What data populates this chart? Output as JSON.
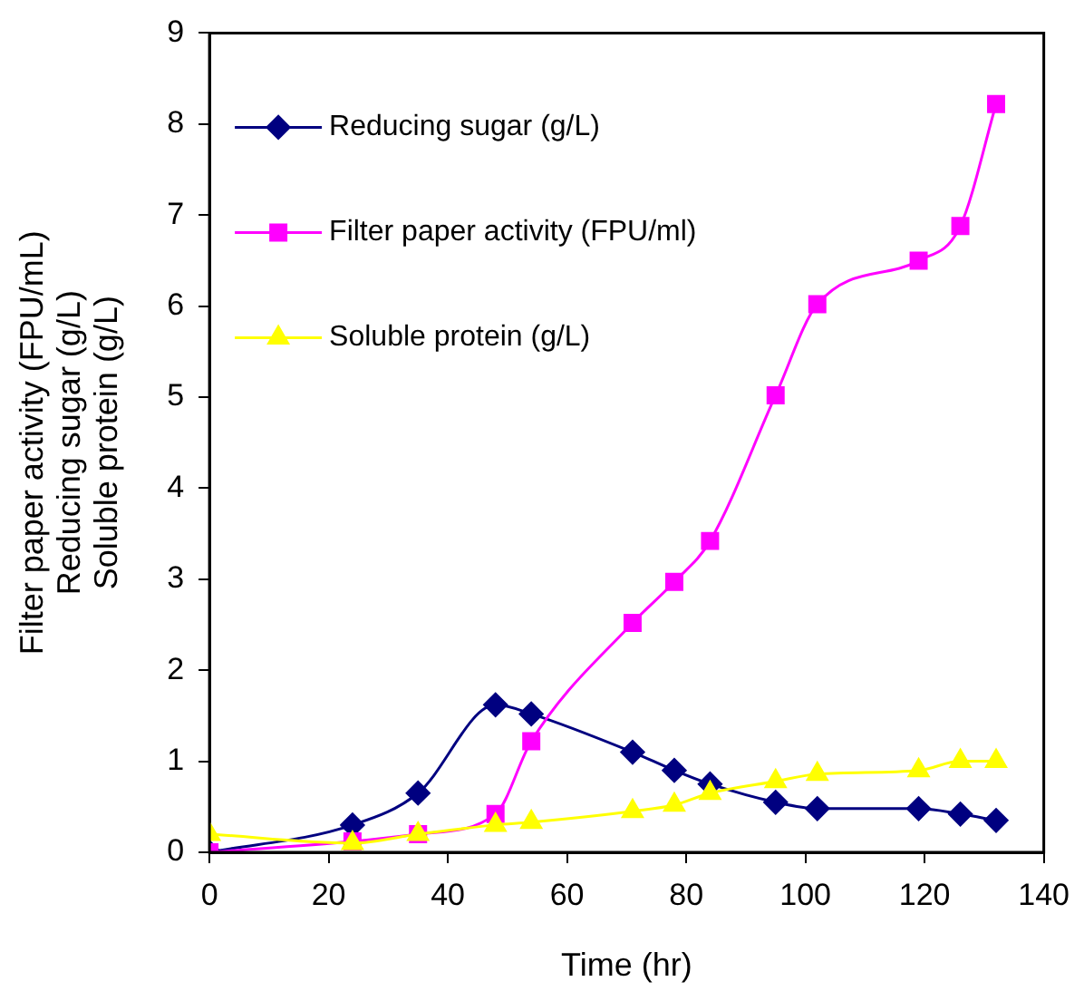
{
  "chart_data": {
    "type": "line",
    "xlabel": "Time (hr)",
    "ylabel": "Filter paper activity (FPU/mL)\nReducing sugar (g/L)\nSoluble protein (g/L)",
    "x": [
      0,
      24,
      35,
      48,
      54,
      71,
      78,
      84,
      95,
      102,
      119,
      126,
      132
    ],
    "series": [
      {
        "name": "Reducing sugar (g/L)",
        "color": "#000080",
        "marker": "diamond",
        "values": [
          0,
          0.3,
          0.65,
          1.62,
          1.52,
          1.1,
          0.9,
          0.75,
          0.55,
          0.48,
          0.48,
          0.42,
          0.35
        ]
      },
      {
        "name": "Filter paper activity (FPU/ml)",
        "color": "#ff00ff",
        "marker": "square",
        "values": [
          0,
          0.12,
          0.2,
          0.42,
          1.22,
          2.52,
          2.97,
          3.42,
          5.02,
          6.02,
          6.5,
          6.88,
          8.22
        ]
      },
      {
        "name": "Soluble protein (g/L)",
        "color": "#ffff00",
        "marker": "triangle",
        "values": [
          0.2,
          0.1,
          0.2,
          0.3,
          0.33,
          0.45,
          0.52,
          0.65,
          0.78,
          0.86,
          0.9,
          1.0,
          1.0
        ]
      }
    ],
    "xlim": [
      0,
      140
    ],
    "xticks": [
      0,
      20,
      40,
      60,
      80,
      100,
      120,
      140
    ],
    "ylim": [
      0,
      9
    ],
    "yticks": [
      0,
      1,
      2,
      3,
      4,
      5,
      6,
      7,
      8,
      9
    ],
    "grid": false,
    "legend": "top left",
    "line_style": "solid"
  }
}
